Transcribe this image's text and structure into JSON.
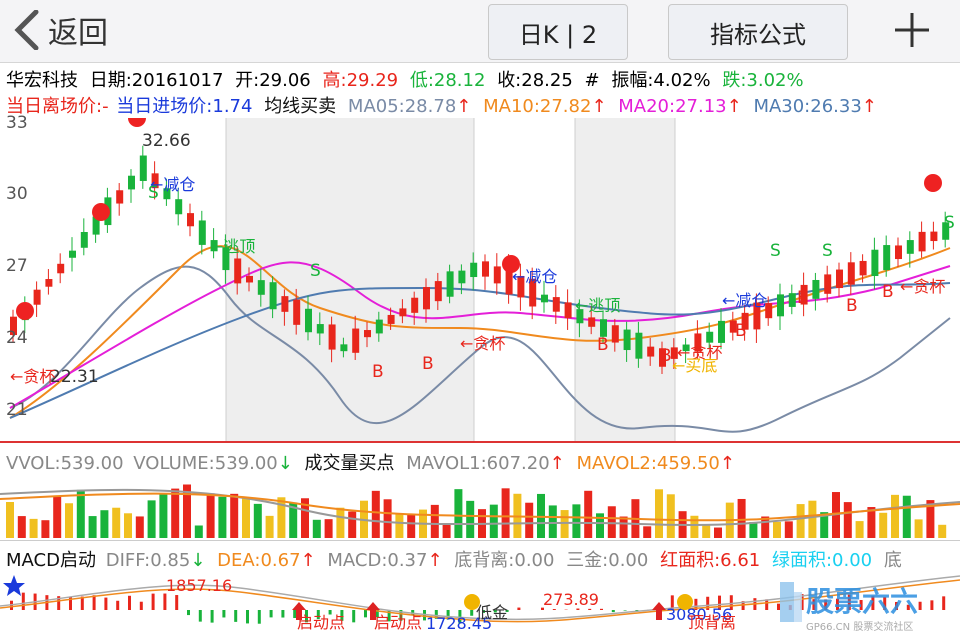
{
  "header": {
    "back_label": "返回",
    "period_label": "日K | 2",
    "formula_label": "指标公式"
  },
  "quote": {
    "name": "华宏科技",
    "date": "日期:20161017",
    "open": "开:29.06",
    "high": "高:29.29",
    "low": "低:28.12",
    "close": "收:28.25",
    "hash": "#",
    "amplitude": "振幅:4.02%",
    "change": "跌:3.02%"
  },
  "strategy": {
    "exit_price": "当日离场价:-",
    "entry_price": "当日进场价:1.74",
    "name": "均线买卖",
    "ma05": "MA05:28.78",
    "ma10": "MA10:27.82",
    "ma20": "MA20:27.13",
    "ma30": "MA30:26.33",
    "up_arrow": "↑"
  },
  "price_axis": [
    "33",
    "30",
    "27",
    "24",
    "21"
  ],
  "price_labels": {
    "high_mark": "32.66",
    "low_mark": "22.31"
  },
  "chart_annotations": {
    "reduce": "←减仓",
    "escape": "←逃顶",
    "cup": "←贪杯",
    "bottom": "←买底",
    "buy": "B",
    "sell": "S"
  },
  "volume": {
    "vvol": "VVOL:539.00",
    "volume": "VOLUME:539.00",
    "down_arrow": "↓",
    "title": "成交量买点",
    "mavol1": "MAVOL1:607.20",
    "mavol2": "MAVOL2:459.50",
    "up_arrow": "↑"
  },
  "macd": {
    "title": "MACD启动",
    "diff": "DIFF:0.85",
    "dea": "DEA:0.67",
    "macd": "MACD:0.37",
    "bottom_div": "底背离:0.00",
    "three_gold": "三金:0.00",
    "red_area": "红面积:6.61",
    "green_area": "绿面积:0.00",
    "tail": "底",
    "down_arrow": "↓",
    "up_arrow": "↑",
    "label_1857": "1857.16",
    "label_273": "273.89",
    "label_1728": "1728.45",
    "start_point": "启动点",
    "low_gold": "低金",
    "top_div": "顶背离",
    "label_3080": "3080.56"
  },
  "watermark": {
    "brand": "股票六六",
    "site": "GP66.CN 股票交流社区"
  },
  "colors": {
    "up": "#e8261c",
    "down": "#19b33b",
    "ma5": "#7a8ba6",
    "ma10": "#f08a1e",
    "ma20": "#e41fd8",
    "ma30": "#4f7bb0"
  }
}
